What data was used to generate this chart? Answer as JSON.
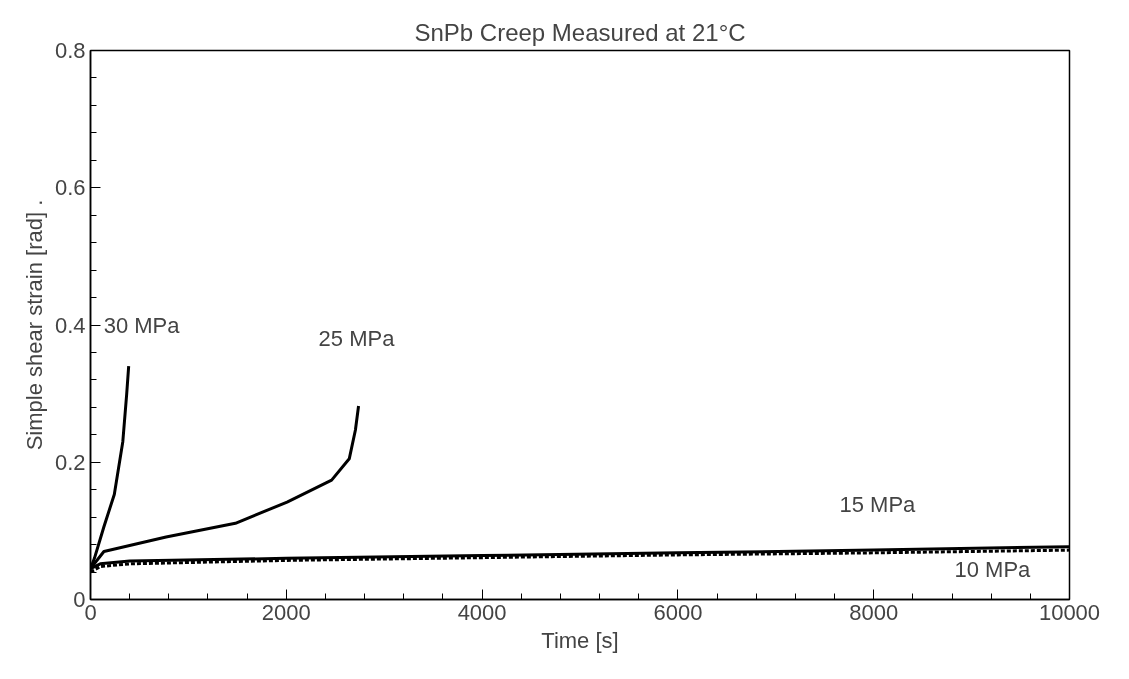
{
  "chart_data": {
    "type": "line",
    "title": "SnPb Creep Measured at 21°C",
    "xlabel": "Time [s]",
    "ylabel": "Simple shear strain [rad] .",
    "xlim": [
      0,
      10000
    ],
    "xticks": [
      0,
      2000,
      4000,
      6000,
      8000,
      10000
    ],
    "ylim": [
      0,
      0.8
    ],
    "yticks": [
      0,
      0.2,
      0.4,
      0.6,
      0.8
    ],
    "grid": false,
    "legend": false,
    "marker": "none",
    "series": [
      {
        "name": "30 MPa",
        "color": "#000000",
        "line_style": "solid",
        "x": [
          0,
          40,
          137,
          243,
          330,
          370,
          390
        ],
        "values": [
          0.045,
          0.06,
          0.106,
          0.153,
          0.23,
          0.3,
          0.34
        ]
      },
      {
        "name": "25 MPa",
        "color": "#000000",
        "line_style": "solid",
        "x": [
          0,
          137,
          772,
          1480,
          2008,
          2463,
          2643,
          2706,
          2738
        ],
        "values": [
          0.045,
          0.07,
          0.091,
          0.111,
          0.142,
          0.174,
          0.205,
          0.247,
          0.282
        ]
      },
      {
        "name": "15 MPa",
        "color": "#000000",
        "line_style": "solid",
        "x": [
          0,
          100,
          400,
          2000,
          4000,
          6000,
          8000,
          10000
        ],
        "values": [
          0.045,
          0.052,
          0.056,
          0.06,
          0.064,
          0.068,
          0.072,
          0.077
        ]
      },
      {
        "name": "10 MPa",
        "color": "#000000",
        "line_style": "dashed",
        "x": [
          0,
          100,
          400,
          2000,
          4000,
          6000,
          8000,
          10000
        ],
        "values": [
          0.04,
          0.048,
          0.052,
          0.057,
          0.061,
          0.065,
          0.068,
          0.072
        ]
      }
    ]
  }
}
